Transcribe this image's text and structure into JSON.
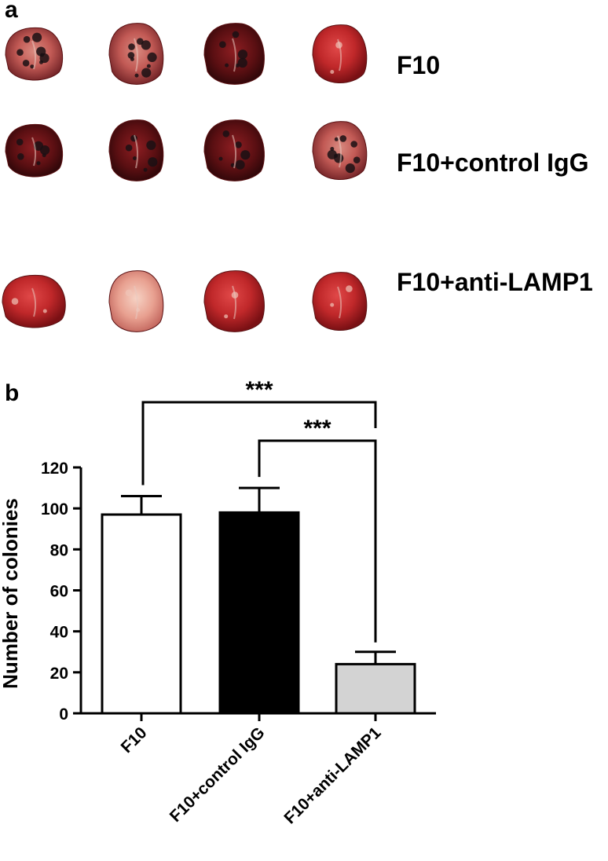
{
  "panel_a": {
    "letter": "a",
    "rows": [
      {
        "label": "F10",
        "lungs": [
          "mixed",
          "mixed",
          "dark",
          "red"
        ]
      },
      {
        "label": "F10+control IgG",
        "lungs": [
          "dark",
          "dark",
          "dark",
          "mixed"
        ]
      },
      {
        "label": "F10+anti-LAMP1",
        "lungs": [
          "red",
          "pale",
          "red",
          "red"
        ]
      }
    ]
  },
  "panel_b": {
    "letter": "b",
    "significance": [
      {
        "text": "***",
        "from": "F10",
        "to": "F10+anti-LAMP1"
      },
      {
        "text": "***",
        "from": "F10+control IgG",
        "to": "F10+anti-LAMP1"
      }
    ]
  },
  "chart_data": {
    "type": "bar",
    "categories": [
      "F10",
      "F10+control IgG",
      "F10+anti-LAMP1"
    ],
    "values": [
      97,
      98,
      24
    ],
    "errors": [
      9,
      12,
      6
    ],
    "colors": [
      "#ffffff",
      "#000000",
      "#d3d3d3"
    ],
    "xlabel": "",
    "ylabel": "Number of colonies",
    "ylim": [
      0,
      120
    ],
    "yticks": [
      0,
      20,
      40,
      60,
      80,
      100,
      120
    ],
    "grid": false,
    "legend": "none"
  }
}
